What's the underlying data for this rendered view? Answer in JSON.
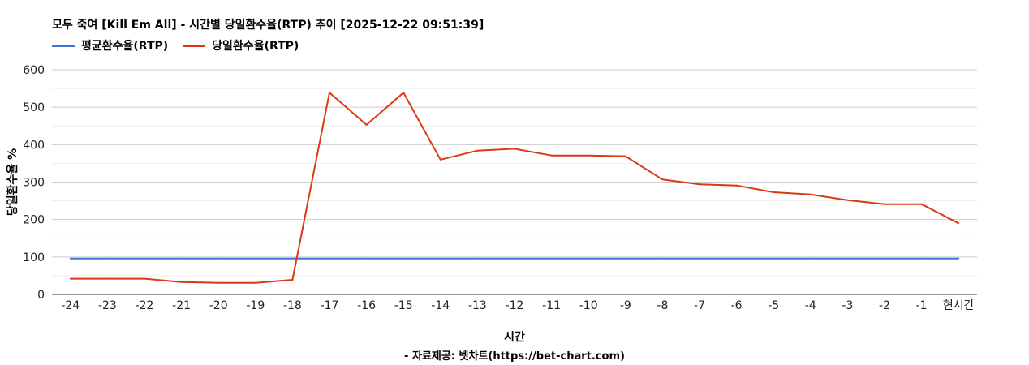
{
  "title": "모두 죽여 [Kill Em All] - 시간별 당일환수율(RTP) 추이 [2025-12-22 09:51:39]",
  "source_note": "- 자료제공: 벳차트(https://bet-chart.com)",
  "chart_data": {
    "type": "line",
    "xlabel": "시간",
    "ylabel": "당일환수율 %",
    "ylim": [
      0,
      600
    ],
    "yticks": [
      0,
      100,
      200,
      300,
      400,
      500,
      600
    ],
    "grid": true,
    "legend_position": "top-left",
    "categories": [
      "-24",
      "-23",
      "-22",
      "-21",
      "-20",
      "-19",
      "-18",
      "-17",
      "-16",
      "-15",
      "-14",
      "-13",
      "-12",
      "-11",
      "-10",
      "-9",
      "-8",
      "-7",
      "-6",
      "-5",
      "-4",
      "-3",
      "-2",
      "-1",
      "현시간"
    ],
    "series": [
      {
        "name": "평균환수율(RTP)",
        "color": "#4472dc",
        "values": [
          96,
          96,
          96,
          96,
          96,
          96,
          96,
          96,
          96,
          96,
          96,
          96,
          96,
          96,
          96,
          96,
          96,
          96,
          96,
          96,
          96,
          96,
          96,
          96,
          96
        ]
      },
      {
        "name": "당일환수율(RTP)",
        "color": "#dc3912",
        "values": [
          42,
          42,
          42,
          33,
          31,
          31,
          39,
          539,
          453,
          539,
          360,
          384,
          389,
          371,
          371,
          369,
          307,
          294,
          291,
          273,
          267,
          252,
          241,
          241,
          190
        ]
      }
    ]
  }
}
